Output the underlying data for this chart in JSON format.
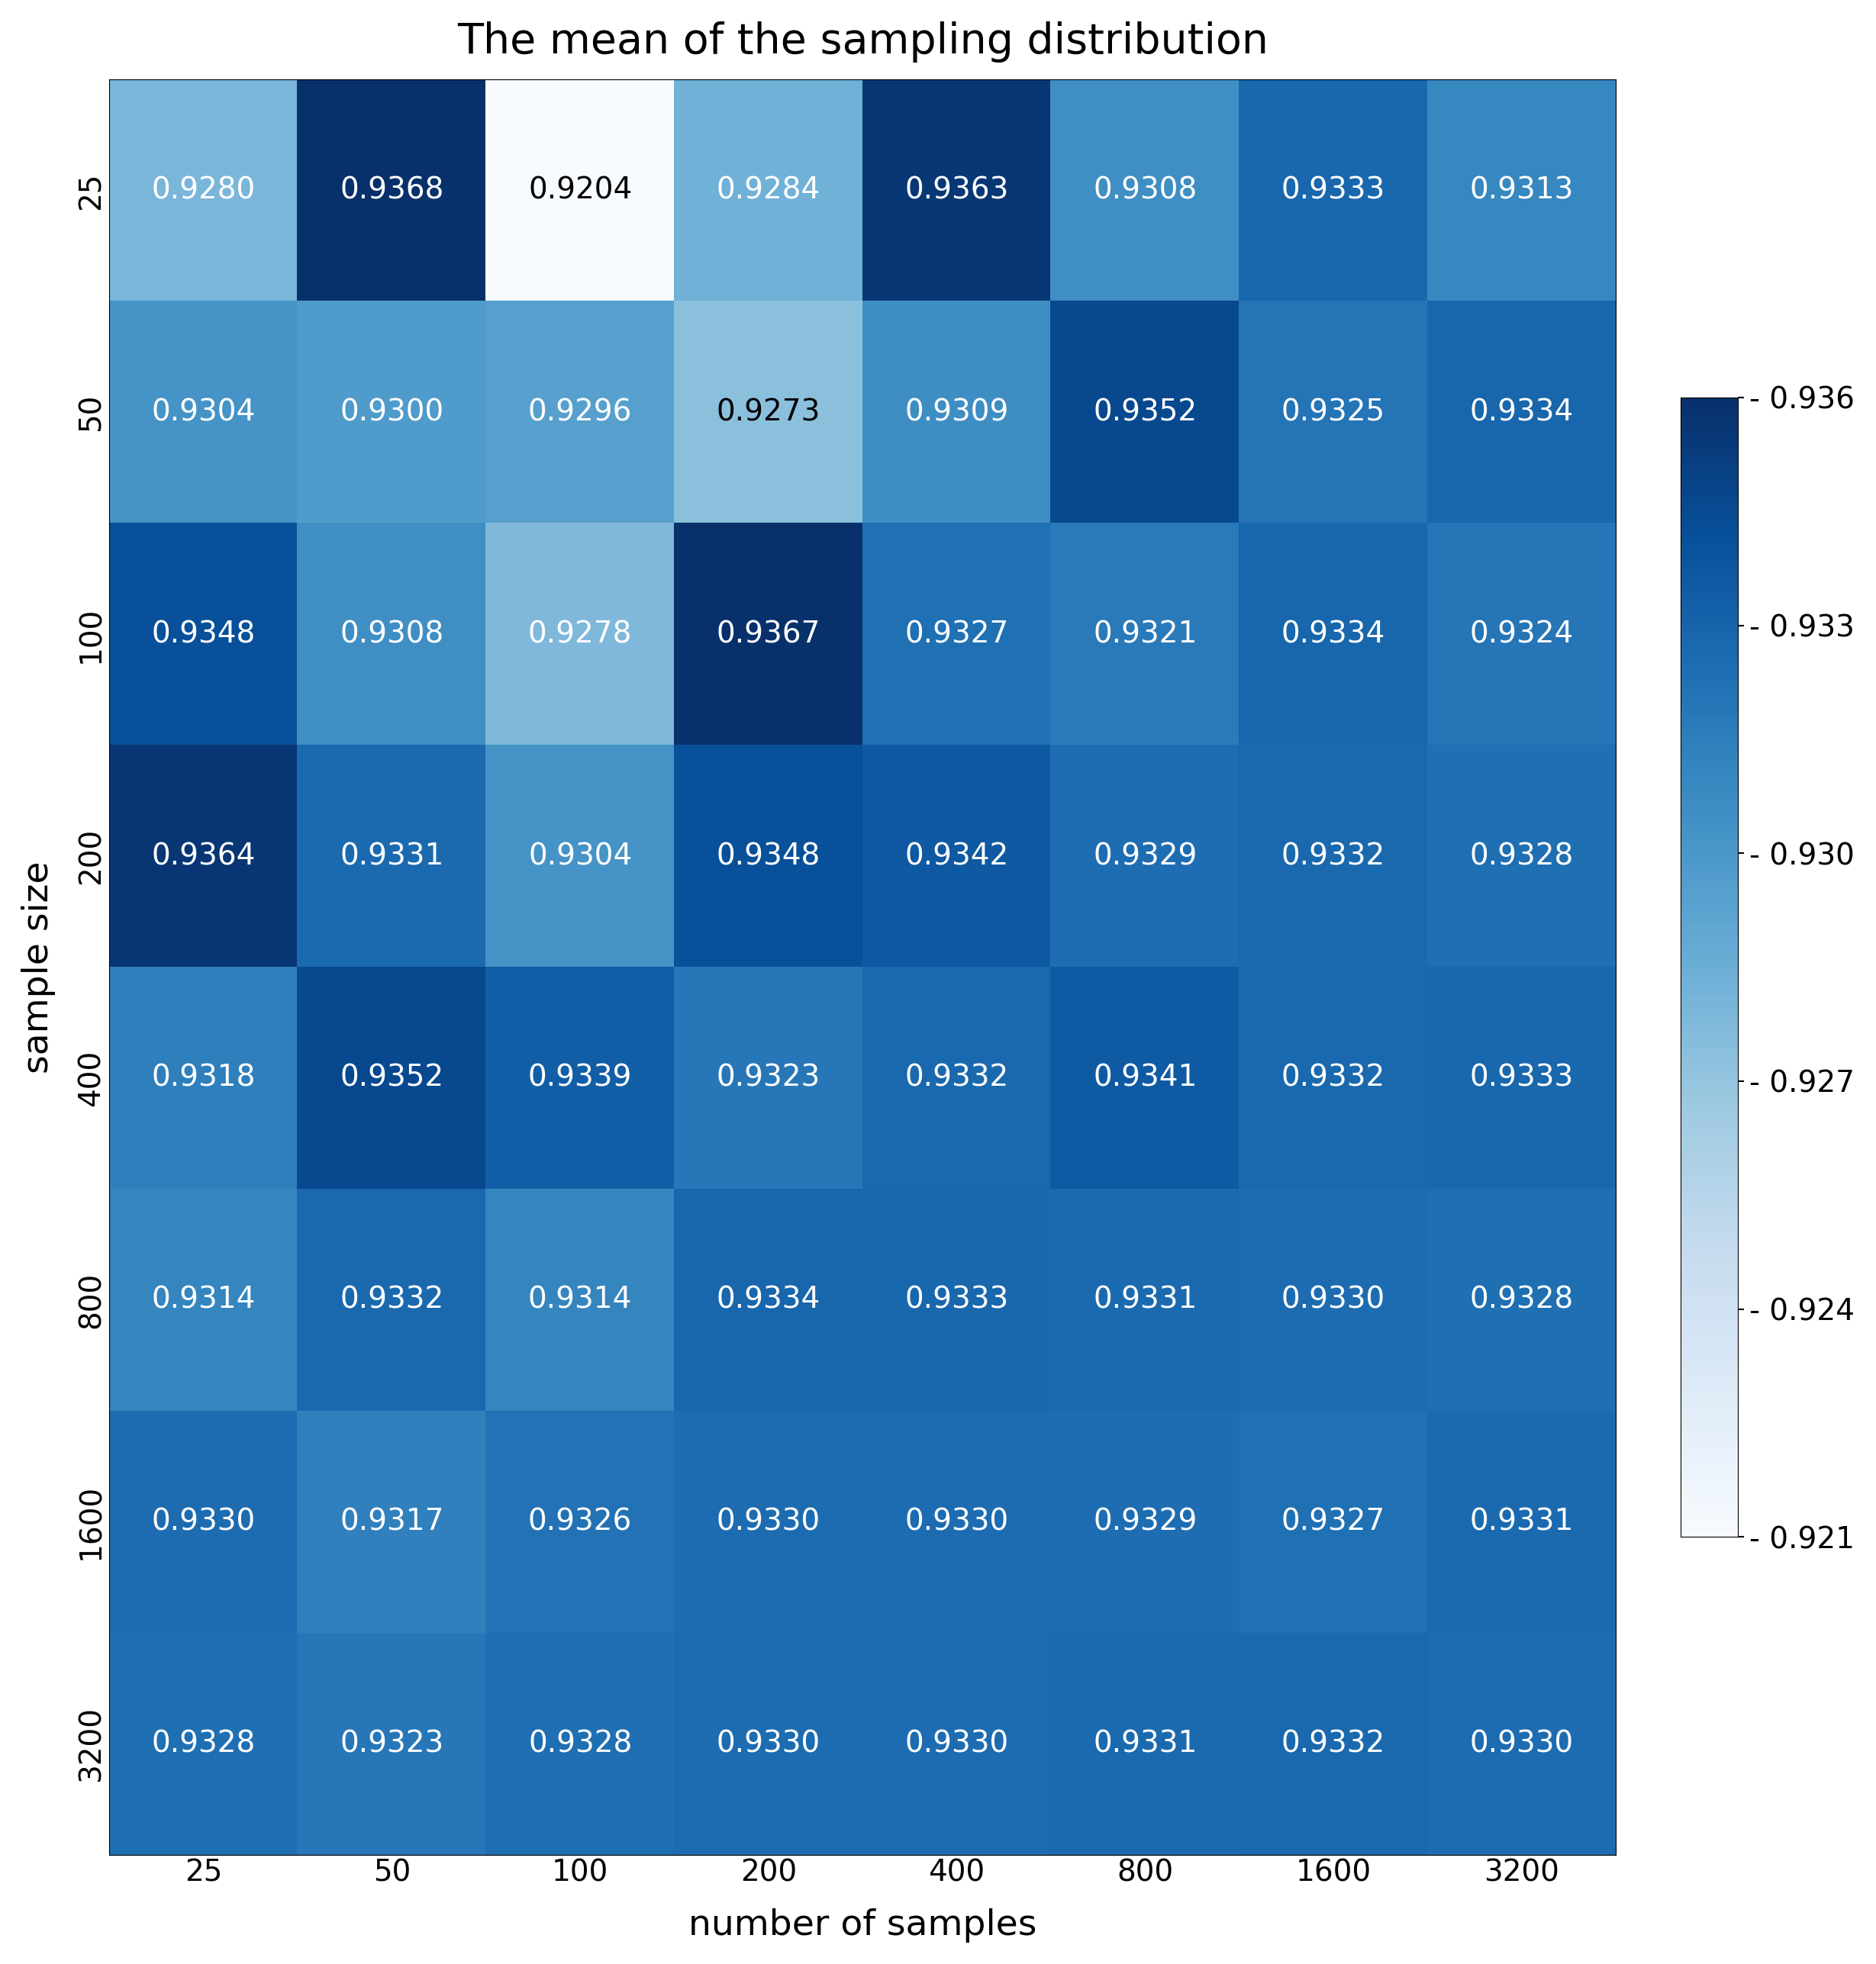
{
  "title": "The mean of the sampling distribution",
  "xlabel": "number of samples",
  "ylabel": "sample size",
  "x_labels": [
    25,
    50,
    100,
    200,
    400,
    800,
    1600,
    3200
  ],
  "y_labels": [
    25,
    50,
    100,
    200,
    400,
    800,
    1600,
    3200
  ],
  "values": [
    [
      0.928,
      0.9368,
      0.9204,
      0.9284,
      0.9363,
      0.9308,
      0.9333,
      0.9313
    ],
    [
      0.9304,
      0.93,
      0.9296,
      0.9273,
      0.9309,
      0.9352,
      0.9325,
      0.9334
    ],
    [
      0.9348,
      0.9308,
      0.9278,
      0.9367,
      0.9327,
      0.9321,
      0.9334,
      0.9324
    ],
    [
      0.9364,
      0.9331,
      0.9304,
      0.9348,
      0.9342,
      0.9329,
      0.9332,
      0.9328
    ],
    [
      0.9318,
      0.9352,
      0.9339,
      0.9323,
      0.9332,
      0.9341,
      0.9332,
      0.9333
    ],
    [
      0.9314,
      0.9332,
      0.9314,
      0.9334,
      0.9333,
      0.9331,
      0.933,
      0.9328
    ],
    [
      0.933,
      0.9317,
      0.9326,
      0.933,
      0.933,
      0.9329,
      0.9327,
      0.9331
    ],
    [
      0.9328,
      0.9323,
      0.9328,
      0.933,
      0.933,
      0.9331,
      0.9332,
      0.933
    ]
  ],
  "cmap": "Blues",
  "vmin": 0.9204,
  "vmax": 0.9368,
  "cbar_vmin": 0.921,
  "cbar_vmax": 0.936,
  "colorbar_ticks": [
    0.921,
    0.924,
    0.927,
    0.93,
    0.933,
    0.936
  ],
  "title_fontsize": 40,
  "label_fontsize": 34,
  "tick_fontsize": 28,
  "annot_fontsize": 28,
  "colorbar_fontsize": 28
}
